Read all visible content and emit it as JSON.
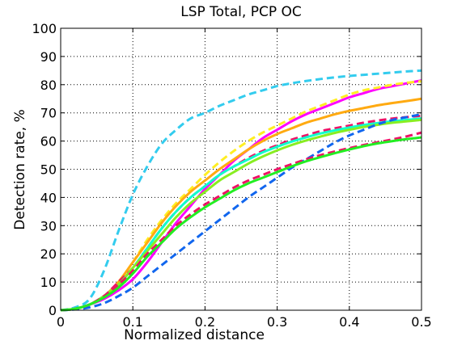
{
  "chart_data": {
    "type": "line",
    "title": "LSP Total, PCP OC",
    "xlabel": "Normalized distance",
    "ylabel": "Detection rate, %",
    "xlim": [
      0,
      0.5
    ],
    "ylim": [
      0,
      100
    ],
    "xticks": [
      "0",
      "0.1",
      "0.2",
      "0.3",
      "0.4",
      "0.5"
    ],
    "yticks": [
      "0",
      "10",
      "20",
      "30",
      "40",
      "50",
      "60",
      "70",
      "80",
      "90",
      "100"
    ],
    "grid": true,
    "x": [
      0,
      0.02,
      0.04,
      0.06,
      0.08,
      0.1,
      0.12,
      0.14,
      0.16,
      0.18,
      0.2,
      0.22,
      0.24,
      0.26,
      0.28,
      0.3,
      0.32,
      0.34,
      0.36,
      0.38,
      0.4,
      0.42,
      0.44,
      0.46,
      0.48,
      0.5
    ],
    "series": [
      {
        "color": "#33ccee",
        "style": "dashed",
        "values": [
          0,
          1,
          4,
          14,
          28,
          41,
          51,
          59,
          64,
          68,
          70,
          72.5,
          74.5,
          76.5,
          78,
          79.5,
          80.5,
          81.3,
          82,
          82.6,
          83.1,
          83.5,
          83.9,
          84.3,
          84.7,
          85
        ]
      },
      {
        "color": "#ff00ff",
        "style": "solid",
        "values": [
          0,
          0.5,
          2,
          4,
          7,
          11,
          17,
          24,
          31,
          37,
          43,
          48,
          53,
          57,
          61,
          64,
          67,
          69.5,
          71.5,
          73.5,
          75.5,
          77,
          78.5,
          79.5,
          80.5,
          81.5
        ]
      },
      {
        "color": "#ffee22",
        "style": "dashed",
        "values": [
          0,
          0.5,
          2,
          5,
          10,
          17,
          25,
          32,
          38,
          43,
          48,
          52.5,
          56.5,
          60,
          63,
          65.5,
          68,
          70.5,
          72.5,
          74.5,
          76.5,
          78,
          79,
          80,
          80.7,
          81.2
        ]
      },
      {
        "color": "#ffaa11",
        "style": "solid",
        "values": [
          0,
          0.5,
          2,
          5,
          10,
          17,
          24,
          31,
          37,
          42,
          46,
          50,
          53.5,
          57,
          60,
          62.5,
          64.5,
          66.5,
          68,
          69.5,
          70.7,
          71.7,
          72.7,
          73.5,
          74.2,
          75
        ]
      },
      {
        "color": "#ee1166",
        "style": "dashed",
        "values": [
          0,
          0.5,
          2,
          5,
          10,
          15,
          22,
          29,
          35,
          40,
          44,
          48,
          51,
          54,
          56.5,
          58.5,
          60.5,
          62,
          63.5,
          64.5,
          65.5,
          66.5,
          67.3,
          68,
          68.5,
          69
        ]
      },
      {
        "color": "#11ffcc",
        "style": "solid",
        "values": [
          0,
          0.5,
          2,
          5,
          9,
          15,
          22,
          29,
          35,
          40,
          44,
          48,
          51,
          53.5,
          56,
          58,
          59.8,
          61.3,
          62.7,
          63.8,
          64.8,
          65.7,
          66.4,
          67,
          67.5,
          68
        ]
      },
      {
        "color": "#88ee22",
        "style": "solid",
        "values": [
          0,
          0.5,
          2,
          5,
          9,
          15,
          21,
          27,
          33,
          38,
          42,
          46,
          49,
          52,
          54.5,
          56.7,
          58.6,
          60.2,
          61.6,
          62.9,
          64,
          65,
          65.8,
          66.5,
          67,
          67.5
        ]
      },
      {
        "color": "#1166ee",
        "style": "dashed",
        "values": [
          0,
          0.3,
          1,
          2.5,
          5,
          8,
          12,
          16,
          20,
          24,
          28,
          32,
          36,
          40,
          43.5,
          47,
          50.5,
          53.5,
          56.5,
          59.5,
          62,
          64,
          66,
          67.5,
          68.5,
          69.5
        ]
      },
      {
        "color": "#ee1166",
        "style": "dashed",
        "values": [
          0,
          0.5,
          2,
          5,
          9,
          14,
          20,
          25,
          30,
          34,
          37.5,
          40.5,
          43.5,
          46,
          48,
          50,
          51.8,
          53.5,
          55,
          56.3,
          57.5,
          58.6,
          59.6,
          60.6,
          61.7,
          63
        ]
      },
      {
        "color": "#22ee22",
        "style": "solid",
        "values": [
          0,
          0.5,
          2,
          4.5,
          8,
          13,
          19,
          24,
          29,
          33,
          36.5,
          39.5,
          42.5,
          45,
          47,
          49,
          51,
          52.8,
          54.3,
          55.7,
          57,
          58.2,
          59.2,
          60,
          60.7,
          61.3
        ]
      }
    ]
  }
}
